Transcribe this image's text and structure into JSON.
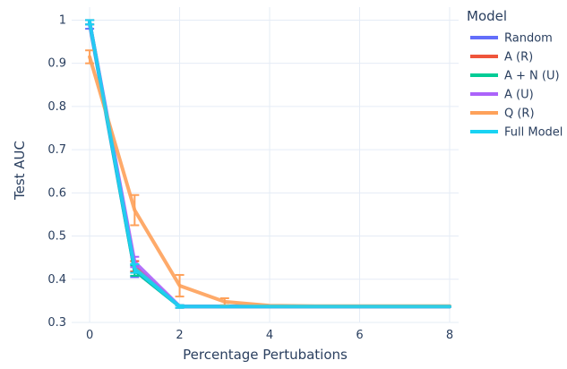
{
  "chart_data": {
    "type": "line",
    "xlabel": "Percentage Pertubations",
    "ylabel": "Test AUC",
    "xlim": [
      -0.4,
      8.2
    ],
    "ylim": [
      0.3,
      1.03
    ],
    "xticks": [
      0,
      2,
      4,
      6,
      8
    ],
    "yticks": [
      0.3,
      0.4,
      0.5,
      0.6,
      0.7,
      0.8,
      0.9,
      1
    ],
    "ytick_labels": [
      "0.3",
      "0.4",
      "0.5",
      "0.6",
      "0.7",
      "0.8",
      "0.9",
      "1"
    ],
    "grid": true,
    "legend_title": "Model",
    "legend_position": "right",
    "x": [
      0,
      1,
      2,
      3,
      4,
      5,
      6,
      7,
      8
    ],
    "series": [
      {
        "name": "Random",
        "color": "#636efa",
        "values": [
          0.99,
          0.42,
          0.337,
          0.337,
          0.337,
          0.337,
          0.337,
          0.337,
          0.337
        ],
        "errors": [
          0.01,
          0.015,
          0.003,
          0,
          0,
          0,
          0,
          0,
          0
        ]
      },
      {
        "name": "A (R)",
        "color": "#ef553b",
        "values": [
          0.995,
          0.43,
          0.337,
          0.337,
          0.337,
          0.337,
          0.337,
          0.337,
          0.337
        ],
        "errors": [
          0.005,
          0.012,
          0.003,
          0,
          0,
          0,
          0,
          0,
          0
        ]
      },
      {
        "name": "A + N (U)",
        "color": "#00cc96",
        "values": [
          0.995,
          0.42,
          0.337,
          0.337,
          0.337,
          0.337,
          0.337,
          0.337,
          0.337
        ],
        "errors": [
          0.005,
          0.012,
          0.003,
          0,
          0,
          0,
          0,
          0,
          0
        ]
      },
      {
        "name": "A (U)",
        "color": "#ab63fa",
        "values": [
          0.995,
          0.44,
          0.337,
          0.337,
          0.337,
          0.337,
          0.337,
          0.337,
          0.337
        ],
        "errors": [
          0.005,
          0.012,
          0.003,
          0,
          0,
          0,
          0,
          0,
          0
        ]
      },
      {
        "name": "Q (R)",
        "color": "#fea15a",
        "values": [
          0.915,
          0.56,
          0.385,
          0.348,
          0.339,
          0.338,
          0.338,
          0.338,
          0.338
        ],
        "errors": [
          0.015,
          0.035,
          0.025,
          0.008,
          0,
          0,
          0,
          0,
          0
        ]
      },
      {
        "name": "Full Model",
        "color": "#19d3f3",
        "values": [
          0.995,
          0.425,
          0.337,
          0.337,
          0.337,
          0.337,
          0.337,
          0.337,
          0.337
        ],
        "errors": [
          0.005,
          0.01,
          0.003,
          0,
          0,
          0,
          0,
          0,
          0
        ]
      }
    ]
  }
}
